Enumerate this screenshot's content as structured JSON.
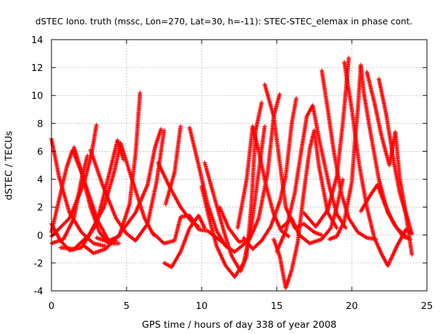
{
  "chart_data": {
    "type": "scatter",
    "title": "dSTEC Iono. truth (mssc, Lon=270, Lat=30, h=-11): STEC-STEC_elemax in phase cont.",
    "xlabel": "GPS time / hours of day 338 of year 2008",
    "ylabel": "dSTEC  / TECUs",
    "xlim": [
      0,
      25
    ],
    "ylim": [
      -4,
      14
    ],
    "xticks": [
      0,
      5,
      10,
      15,
      20,
      25
    ],
    "yticks": [
      -4,
      -2,
      0,
      2,
      4,
      6,
      8,
      10,
      12,
      14
    ],
    "grid": true,
    "marker": "+",
    "color": "#ff0000",
    "arcs": [
      [
        [
          0.0,
          6.9
        ],
        [
          0.5,
          4.2
        ],
        [
          1.2,
          1.6
        ],
        [
          2.0,
          0.2
        ],
        [
          2.8,
          -0.6
        ],
        [
          3.6,
          -0.8
        ]
      ],
      [
        [
          0.0,
          0.8
        ],
        [
          0.6,
          -0.4
        ],
        [
          1.2,
          -1.1
        ],
        [
          2.0,
          -0.9
        ],
        [
          3.0,
          0.8
        ],
        [
          3.8,
          4.2
        ],
        [
          4.4,
          6.8
        ],
        [
          4.8,
          5.4
        ]
      ],
      [
        [
          0.0,
          -0.1
        ],
        [
          1.2,
          1.2
        ],
        [
          2.2,
          3.8
        ],
        [
          2.7,
          6.0
        ],
        [
          3.0,
          7.9
        ]
      ],
      [
        [
          0.0,
          -0.6
        ],
        [
          0.8,
          -0.3
        ],
        [
          1.5,
          1.2
        ],
        [
          2.0,
          4.0
        ],
        [
          2.4,
          5.7
        ]
      ],
      [
        [
          0.0,
          0.2
        ],
        [
          0.5,
          2.5
        ],
        [
          1.0,
          4.8
        ],
        [
          1.4,
          6.1
        ],
        [
          2.0,
          4.5
        ],
        [
          2.6,
          2.0
        ],
        [
          3.2,
          0.2
        ],
        [
          3.8,
          -0.6
        ],
        [
          4.5,
          -0.6
        ]
      ],
      [
        [
          1.5,
          6.3
        ],
        [
          2.3,
          3.5
        ],
        [
          3.1,
          1.0
        ],
        [
          3.8,
          -0.4
        ],
        [
          4.5,
          -0.1
        ],
        [
          5.2,
          2.2
        ],
        [
          5.6,
          5.8
        ],
        [
          5.9,
          10.2
        ]
      ],
      [
        [
          2.6,
          6.1
        ],
        [
          3.4,
          3.6
        ],
        [
          4.3,
          1.2
        ],
        [
          5.0,
          0.1
        ],
        [
          5.6,
          -0.4
        ],
        [
          6.4,
          0.8
        ],
        [
          7.0,
          3.8
        ],
        [
          7.5,
          7.5
        ]
      ],
      [
        [
          0.6,
          -0.9
        ],
        [
          1.5,
          -1.0
        ],
        [
          2.5,
          0.0
        ],
        [
          3.5,
          2.0
        ],
        [
          4.2,
          4.6
        ],
        [
          4.6,
          6.6
        ],
        [
          5.3,
          4.2
        ],
        [
          6.2,
          1.2
        ],
        [
          6.8,
          0.0
        ]
      ],
      [
        [
          2.2,
          -0.8
        ],
        [
          2.8,
          -1.3
        ],
        [
          3.6,
          -1.0
        ],
        [
          4.5,
          0.0
        ],
        [
          5.6,
          1.6
        ],
        [
          6.4,
          3.6
        ],
        [
          6.9,
          6.3
        ],
        [
          7.3,
          7.6
        ]
      ],
      [
        [
          3.0,
          -0.2
        ],
        [
          3.8,
          -0.5
        ],
        [
          4.3,
          -0.4
        ]
      ],
      [
        [
          7.1,
          5.2
        ],
        [
          7.8,
          3.6
        ],
        [
          8.6,
          2.0
        ],
        [
          9.3,
          1.0
        ],
        [
          9.8,
          0.6
        ]
      ],
      [
        [
          6.8,
          0.1
        ],
        [
          7.5,
          -0.6
        ],
        [
          8.2,
          -0.4
        ],
        [
          8.6,
          1.3
        ],
        [
          9.2,
          1.4
        ],
        [
          9.8,
          0.4
        ],
        [
          10.4,
          0.3
        ],
        [
          11.0,
          -0.2
        ],
        [
          11.5,
          -0.6
        ]
      ],
      [
        [
          7.5,
          -2.0
        ],
        [
          8.0,
          -2.3
        ],
        [
          8.6,
          -1.2
        ],
        [
          9.2,
          0.5
        ],
        [
          9.8,
          1.4
        ],
        [
          10.2,
          0.5
        ]
      ],
      [
        [
          7.6,
          2.2
        ],
        [
          8.2,
          4.5
        ],
        [
          8.6,
          7.8
        ]
      ],
      [
        [
          9.2,
          7.7
        ],
        [
          9.8,
          5.0
        ],
        [
          10.4,
          2.2
        ],
        [
          11.0,
          0.3
        ],
        [
          11.6,
          -0.8
        ],
        [
          12.2,
          -1.2
        ],
        [
          13.0,
          -0.5
        ]
      ],
      [
        [
          10.0,
          3.5
        ],
        [
          10.5,
          1.2
        ],
        [
          11.0,
          -0.8
        ],
        [
          11.6,
          -2.2
        ],
        [
          12.2,
          -3.0
        ],
        [
          12.8,
          -2.0
        ],
        [
          13.3,
          0.5
        ],
        [
          13.8,
          4.5
        ],
        [
          14.2,
          7.8
        ]
      ],
      [
        [
          10.2,
          5.2
        ],
        [
          10.9,
          2.5
        ],
        [
          11.5,
          0.2
        ],
        [
          12.0,
          -1.5
        ],
        [
          12.6,
          -2.6
        ],
        [
          13.0,
          -1.5
        ],
        [
          13.3,
          2.0
        ],
        [
          13.6,
          7.5
        ],
        [
          14.0,
          9.5
        ]
      ],
      [
        [
          11.2,
          2.0
        ],
        [
          11.8,
          0.5
        ],
        [
          12.5,
          -0.5
        ],
        [
          13.2,
          -0.3
        ],
        [
          13.8,
          1.2
        ],
        [
          14.4,
          4.5
        ],
        [
          14.8,
          8.5
        ],
        [
          15.2,
          10.1
        ]
      ],
      [
        [
          12.4,
          0.5
        ],
        [
          13.0,
          4.0
        ],
        [
          13.4,
          7.8
        ],
        [
          13.8,
          6.0
        ],
        [
          14.3,
          3.5
        ],
        [
          14.8,
          1.5
        ],
        [
          15.3,
          0.3
        ],
        [
          15.8,
          -0.1
        ]
      ],
      [
        [
          12.8,
          -0.2
        ],
        [
          13.4,
          -1.0
        ],
        [
          14.0,
          -0.4
        ],
        [
          14.6,
          0.6
        ],
        [
          15.2,
          2.4
        ],
        [
          15.6,
          4.2
        ],
        [
          16.0,
          8.0
        ],
        [
          16.3,
          9.8
        ]
      ],
      [
        [
          14.2,
          10.8
        ],
        [
          14.8,
          8.5
        ],
        [
          15.2,
          5.2
        ],
        [
          15.6,
          2.0
        ],
        [
          16.2,
          0.5
        ],
        [
          16.8,
          0.8
        ],
        [
          17.5,
          0.2
        ],
        [
          18.0,
          0.0
        ]
      ],
      [
        [
          14.8,
          -0.3
        ],
        [
          15.2,
          -1.5
        ],
        [
          15.6,
          -3.8
        ],
        [
          16.0,
          -2.5
        ],
        [
          16.4,
          -0.5
        ],
        [
          16.8,
          3.0
        ],
        [
          17.2,
          6.2
        ],
        [
          17.5,
          7.5
        ],
        [
          17.8,
          5.0
        ],
        [
          18.4,
          1.6
        ],
        [
          19.0,
          0.5
        ]
      ],
      [
        [
          15.0,
          -1.2
        ],
        [
          15.6,
          0.3
        ],
        [
          16.2,
          3.0
        ],
        [
          16.6,
          5.8
        ],
        [
          17.0,
          8.5
        ],
        [
          17.4,
          9.3
        ],
        [
          17.8,
          7.0
        ],
        [
          18.5,
          3.5
        ],
        [
          19.0,
          1.5
        ],
        [
          19.6,
          0.5
        ]
      ],
      [
        [
          15.3,
          0.5
        ],
        [
          16.0,
          1.2
        ],
        [
          16.5,
          0.0
        ],
        [
          17.2,
          -0.6
        ],
        [
          18.0,
          -0.3
        ],
        [
          18.6,
          0.5
        ],
        [
          19.0,
          2.0
        ],
        [
          19.4,
          4.0
        ]
      ],
      [
        [
          16.8,
          1.6
        ],
        [
          17.6,
          0.6
        ],
        [
          18.4,
          1.8
        ],
        [
          19.0,
          4.2
        ],
        [
          19.4,
          8.0
        ],
        [
          19.8,
          12.7
        ]
      ],
      [
        [
          18.0,
          11.8
        ],
        [
          18.4,
          9.0
        ],
        [
          18.8,
          6.0
        ],
        [
          19.3,
          3.0
        ],
        [
          19.8,
          1.2
        ],
        [
          20.4,
          0.2
        ],
        [
          21.0,
          -0.2
        ],
        [
          21.6,
          -0.3
        ]
      ],
      [
        [
          18.5,
          -0.3
        ],
        [
          19.0,
          -0.1
        ],
        [
          19.5,
          1.0
        ],
        [
          20.0,
          3.8
        ],
        [
          20.2,
          6.6
        ],
        [
          20.4,
          9.0
        ],
        [
          20.6,
          12.2
        ],
        [
          20.8,
          10.2
        ],
        [
          21.2,
          7.6
        ],
        [
          21.8,
          4.0
        ],
        [
          22.4,
          1.6
        ],
        [
          23.0,
          0.5
        ],
        [
          23.6,
          -0.1
        ]
      ],
      [
        [
          19.5,
          12.4
        ],
        [
          20.0,
          9.0
        ],
        [
          20.5,
          5.0
        ],
        [
          21.0,
          2.0
        ],
        [
          21.5,
          -0.2
        ],
        [
          22.0,
          -1.4
        ],
        [
          22.4,
          -2.2
        ],
        [
          23.0,
          -0.8
        ],
        [
          23.6,
          0.4
        ],
        [
          24.0,
          0.1
        ]
      ],
      [
        [
          21.0,
          11.7
        ],
        [
          21.5,
          9.5
        ],
        [
          22.0,
          7.0
        ],
        [
          22.5,
          5.0
        ],
        [
          22.9,
          7.4
        ],
        [
          23.2,
          4.0
        ],
        [
          23.6,
          1.6
        ],
        [
          24.0,
          0.1
        ]
      ],
      [
        [
          21.8,
          11.2
        ],
        [
          22.3,
          8.6
        ],
        [
          22.8,
          5.2
        ],
        [
          23.2,
          3.0
        ],
        [
          23.6,
          1.5
        ],
        [
          24.0,
          -1.4
        ]
      ],
      [
        [
          20.6,
          1.7
        ],
        [
          21.2,
          2.8
        ],
        [
          21.7,
          3.6
        ],
        [
          22.2,
          2.2
        ],
        [
          22.8,
          0.8
        ],
        [
          23.4,
          -0.1
        ],
        [
          23.9,
          -0.3
        ]
      ]
    ]
  }
}
